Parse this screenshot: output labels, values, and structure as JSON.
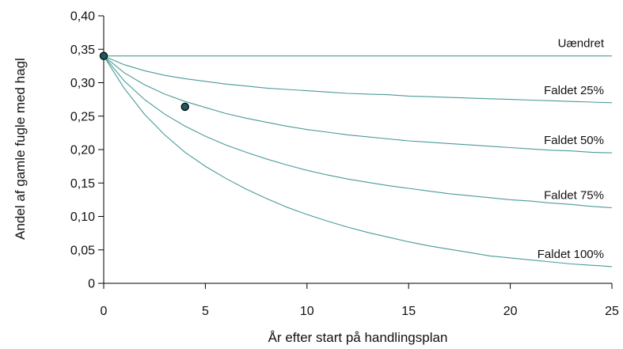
{
  "chart_data": {
    "type": "line",
    "xlabel": "År efter start på handlingsplan",
    "ylabel": "Andel af gamle fugle med hagl",
    "xlim": [
      0,
      25
    ],
    "ylim": [
      0,
      0.4
    ],
    "x_ticks": [
      0,
      5,
      10,
      15,
      20,
      25
    ],
    "x_tick_labels": [
      "0",
      "5",
      "10",
      "15",
      "20",
      "25"
    ],
    "y_ticks": [
      0,
      0.05,
      0.1,
      0.15,
      0.2,
      0.25,
      0.3,
      0.35,
      0.4
    ],
    "y_tick_labels": [
      "0",
      "0,05",
      "0,10",
      "0,15",
      "0,20",
      "0,25",
      "0,30",
      "0,35",
      "0,40"
    ],
    "grid": false,
    "legend": "none; series labels placed above the right end of each curve",
    "line_color": "#4a9a98",
    "point_color": "#1d5a5c",
    "x": [
      0,
      1,
      2,
      3,
      4,
      5,
      6,
      7,
      8,
      9,
      10,
      11,
      12,
      13,
      14,
      15,
      16,
      17,
      18,
      19,
      20,
      21,
      22,
      23,
      24,
      25
    ],
    "series": [
      {
        "name": "Uændret",
        "values": [
          0.34,
          0.34,
          0.34,
          0.34,
          0.34,
          0.34,
          0.34,
          0.34,
          0.34,
          0.34,
          0.34,
          0.34,
          0.34,
          0.34,
          0.34,
          0.34,
          0.34,
          0.34,
          0.34,
          0.34,
          0.34,
          0.34,
          0.34,
          0.34,
          0.34,
          0.34
        ]
      },
      {
        "name": "Faldet 25%",
        "values": [
          0.34,
          0.327,
          0.318,
          0.311,
          0.306,
          0.302,
          0.298,
          0.295,
          0.292,
          0.29,
          0.288,
          0.286,
          0.284,
          0.283,
          0.282,
          0.28,
          0.279,
          0.278,
          0.277,
          0.276,
          0.275,
          0.274,
          0.273,
          0.272,
          0.271,
          0.27
        ]
      },
      {
        "name": "Faldet 50%",
        "values": [
          0.34,
          0.315,
          0.297,
          0.283,
          0.272,
          0.263,
          0.254,
          0.247,
          0.241,
          0.235,
          0.23,
          0.226,
          0.222,
          0.219,
          0.216,
          0.213,
          0.211,
          0.209,
          0.207,
          0.205,
          0.203,
          0.201,
          0.199,
          0.198,
          0.196,
          0.195
        ]
      },
      {
        "name": "Faldet 75%",
        "values": [
          0.34,
          0.303,
          0.275,
          0.253,
          0.235,
          0.22,
          0.207,
          0.196,
          0.186,
          0.177,
          0.169,
          0.162,
          0.156,
          0.151,
          0.146,
          0.142,
          0.138,
          0.134,
          0.131,
          0.128,
          0.125,
          0.123,
          0.12,
          0.118,
          0.115,
          0.113
        ]
      },
      {
        "name": "Faldet 100%",
        "values": [
          0.34,
          0.292,
          0.253,
          0.222,
          0.196,
          0.175,
          0.157,
          0.141,
          0.127,
          0.114,
          0.103,
          0.093,
          0.084,
          0.076,
          0.069,
          0.062,
          0.056,
          0.051,
          0.046,
          0.041,
          0.038,
          0.035,
          0.032,
          0.029,
          0.027,
          0.025
        ]
      }
    ],
    "points": [
      {
        "x": 0,
        "y": 0.34
      },
      {
        "x": 4,
        "y": 0.264
      }
    ]
  }
}
